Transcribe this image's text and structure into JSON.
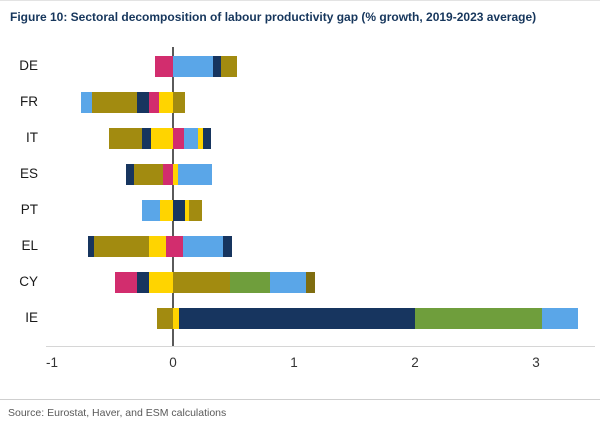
{
  "figure": {
    "title": "Figure 10: Sectoral decomposition of labour productivity gap (% growth, 2019-2023 average)",
    "source": "Source: Eurostat, Haver, and ESM calculations"
  },
  "colors": {
    "title_text": "#16365c",
    "zero_line": "#5a5a5a",
    "olive": "#a28b10",
    "darkolive": "#7f6d10",
    "yellow": "#ffd400",
    "magenta": "#d22d6e",
    "navy": "#17355f",
    "lightblue": "#5aa6e8",
    "green": "#6f9e3c"
  },
  "chart_data": {
    "type": "bar",
    "orientation": "horizontal-stacked-diverging",
    "title": "Figure 10: Sectoral decomposition of labour productivity gap (% growth, 2019-2023 average)",
    "xlabel": "",
    "ylabel": "",
    "xlim": [
      -1.05,
      3.45
    ],
    "x_ticks": [
      -1,
      0,
      1,
      2,
      3
    ],
    "grid": false,
    "legend": "none",
    "categories": [
      "DE",
      "FR",
      "IT",
      "ES",
      "PT",
      "EL",
      "CY",
      "IE"
    ],
    "rows": [
      {
        "country": "DE",
        "segments": [
          {
            "color": "magenta",
            "value": -0.15
          },
          {
            "color": "lightblue",
            "value": 0.33
          },
          {
            "color": "navy",
            "value": 0.07
          },
          {
            "color": "olive",
            "value": 0.13
          }
        ]
      },
      {
        "country": "FR",
        "segments": [
          {
            "color": "lightblue",
            "value": -0.09
          },
          {
            "color": "olive",
            "value": -0.37
          },
          {
            "color": "navy",
            "value": -0.1
          },
          {
            "color": "magenta",
            "value": -0.08
          },
          {
            "color": "yellow",
            "value": -0.12
          },
          {
            "color": "olive",
            "value": 0.1
          }
        ]
      },
      {
        "country": "IT",
        "segments": [
          {
            "color": "olive",
            "value": -0.27
          },
          {
            "color": "navy",
            "value": -0.08
          },
          {
            "color": "yellow",
            "value": -0.18
          },
          {
            "color": "magenta",
            "value": 0.09
          },
          {
            "color": "lightblue",
            "value": 0.12
          },
          {
            "color": "yellow",
            "value": 0.04
          },
          {
            "color": "navy",
            "value": 0.06
          }
        ]
      },
      {
        "country": "ES",
        "segments": [
          {
            "color": "navy",
            "value": -0.07
          },
          {
            "color": "olive",
            "value": -0.24
          },
          {
            "color": "magenta",
            "value": -0.08
          },
          {
            "color": "yellow",
            "value": 0.04
          },
          {
            "color": "lightblue",
            "value": 0.28
          }
        ]
      },
      {
        "country": "PT",
        "segments": [
          {
            "color": "lightblue",
            "value": -0.15
          },
          {
            "color": "yellow",
            "value": -0.11
          },
          {
            "color": "navy",
            "value": 0.1
          },
          {
            "color": "yellow",
            "value": 0.03
          },
          {
            "color": "olive",
            "value": 0.11
          }
        ]
      },
      {
        "country": "EL",
        "segments": [
          {
            "color": "navy",
            "value": -0.05
          },
          {
            "color": "olive",
            "value": -0.45
          },
          {
            "color": "yellow",
            "value": -0.14
          },
          {
            "color": "magenta",
            "value": -0.06
          },
          {
            "color": "magenta",
            "value": 0.08
          },
          {
            "color": "lightblue",
            "value": 0.33
          },
          {
            "color": "navy",
            "value": 0.08
          }
        ]
      },
      {
        "country": "CY",
        "segments": [
          {
            "color": "magenta",
            "value": -0.18
          },
          {
            "color": "navy",
            "value": -0.1
          },
          {
            "color": "yellow",
            "value": -0.2
          },
          {
            "color": "olive",
            "value": 0.47
          },
          {
            "color": "green",
            "value": 0.33
          },
          {
            "color": "lightblue",
            "value": 0.3
          },
          {
            "color": "darkolive",
            "value": 0.07
          }
        ]
      },
      {
        "country": "IE",
        "segments": [
          {
            "color": "olive",
            "value": -0.13
          },
          {
            "color": "yellow",
            "value": 0.05
          },
          {
            "color": "navy",
            "value": 1.95
          },
          {
            "color": "green",
            "value": 1.05
          },
          {
            "color": "lightblue",
            "value": 0.3
          }
        ]
      }
    ]
  }
}
